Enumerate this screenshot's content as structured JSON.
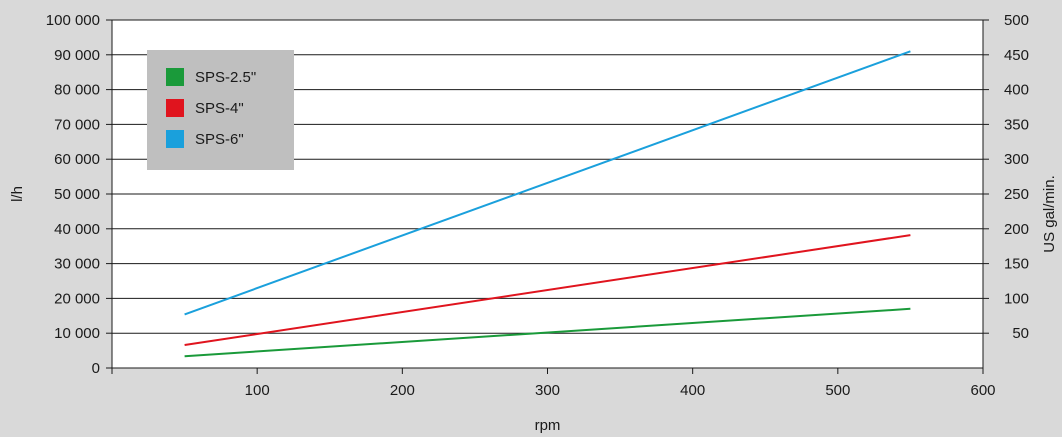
{
  "chart_data": {
    "type": "line",
    "xlabel": "rpm",
    "ylabel": "l/h",
    "y2label": "US gal/min.",
    "xlim": [
      0,
      600
    ],
    "ylim": [
      0,
      100000
    ],
    "y2lim": [
      0,
      500
    ],
    "x_ticks": [
      100,
      200,
      300,
      400,
      500,
      600
    ],
    "y_ticks": [
      "0",
      "10 000",
      "20 000",
      "30 000",
      "40 000",
      "50 000",
      "60 000",
      "70 000",
      "80 000",
      "90 000",
      "100 000"
    ],
    "y2_ticks": [
      "50",
      "100",
      "150",
      "200",
      "250",
      "300",
      "350",
      "400",
      "450",
      "500"
    ],
    "grid": "horizontal",
    "legend_position": "top-left",
    "series": [
      {
        "name": "SPS-2.5\"",
        "color": "#1a9a3a",
        "x": [
          50,
          550
        ],
        "y": [
          3400,
          17000
        ]
      },
      {
        "name": "SPS-4\"",
        "color": "#e0141e",
        "x": [
          50,
          550
        ],
        "y": [
          6600,
          38200
        ]
      },
      {
        "name": "SPS-6\"",
        "color": "#1aa0dc",
        "x": [
          50,
          550
        ],
        "y": [
          15400,
          91000
        ]
      }
    ]
  }
}
